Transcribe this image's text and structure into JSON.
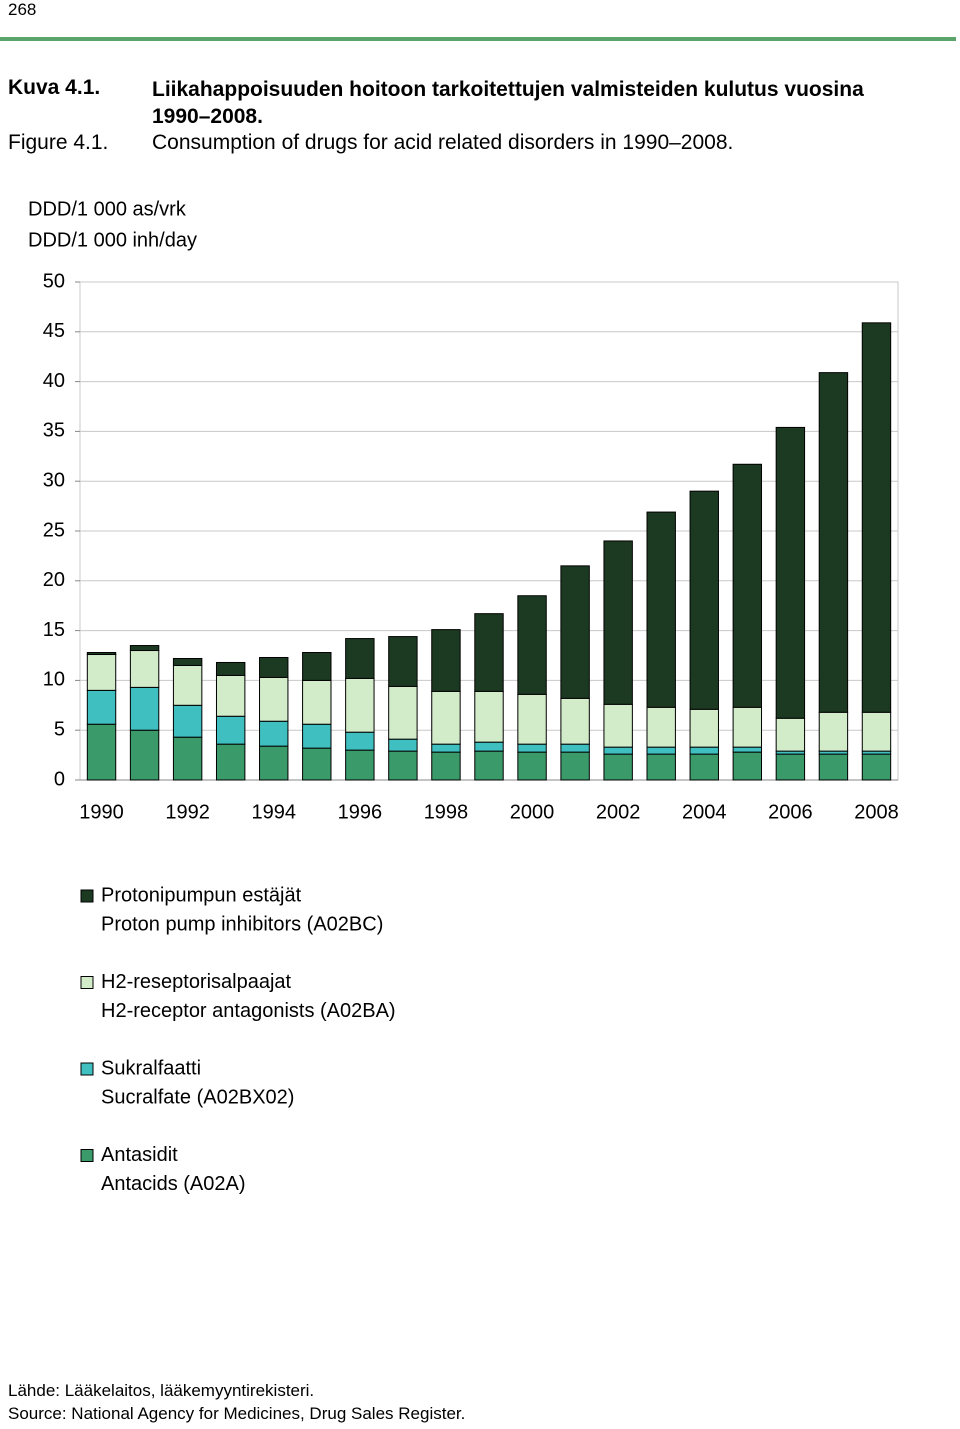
{
  "page_number": "268",
  "chart_data": {
    "type": "bar",
    "stacked": true,
    "figure_label_fi": "Kuva 4.1.",
    "title_fi": "Liikahappoisuuden hoitoon tarkoitettujen valmisteiden kulutus vuosina 1990–2008.",
    "figure_label": "Figure 4.1.",
    "title": "Consumption of drugs for acid related disorders in 1990–2008.",
    "ylabel": [
      "DDD/1 000 as/vrk",
      "DDD/1 000 inh/day"
    ],
    "categories": [
      "1990",
      null,
      "1992",
      null,
      "1994",
      null,
      "1996",
      null,
      "1998",
      null,
      "2000",
      null,
      "2002",
      null,
      "2004",
      null,
      "2006",
      null,
      "2008"
    ],
    "ylim": [
      0,
      50
    ],
    "yticks": [
      0,
      5,
      10,
      15,
      20,
      25,
      30,
      35,
      40,
      45,
      50
    ],
    "grid": true,
    "series": [
      {
        "name": "Antasidit",
        "name_en": "Antacids (A02A)",
        "color": "#3a9a6a",
        "values": [
          5.6,
          5.0,
          4.3,
          3.6,
          3.4,
          3.2,
          3.0,
          2.9,
          2.8,
          2.9,
          2.8,
          2.8,
          2.6,
          2.6,
          2.6,
          2.8,
          2.6,
          2.6,
          2.6
        ]
      },
      {
        "name": "Sukralfaatti",
        "name_en": "Sucralfate (A02BX02)",
        "color": "#3fbfc0",
        "values": [
          3.4,
          4.3,
          3.2,
          2.8,
          2.5,
          2.4,
          1.8,
          1.2,
          0.8,
          0.9,
          0.8,
          0.8,
          0.7,
          0.7,
          0.7,
          0.5,
          0.3,
          0.3,
          0.3
        ]
      },
      {
        "name": "H2-reseptorisalpaajat",
        "name_en": "H2-receptor antagonists (A02BA)",
        "color": "#d2ebc8",
        "values": [
          3.6,
          3.7,
          4.0,
          4.1,
          4.4,
          4.4,
          5.4,
          5.3,
          5.3,
          5.1,
          5.0,
          4.6,
          4.3,
          4.0,
          3.8,
          4.0,
          3.3,
          3.9,
          3.9
        ]
      },
      {
        "name": "Protonipumpun estäjät",
        "name_en": "Proton pump inhibitors (A02BC)",
        "color": "#1c3a22",
        "values": [
          0.2,
          0.5,
          0.7,
          1.3,
          2.0,
          2.8,
          4.0,
          5.0,
          6.2,
          7.8,
          9.9,
          13.3,
          16.4,
          19.6,
          21.9,
          24.4,
          29.2,
          34.1,
          39.1
        ]
      }
    ]
  },
  "source": [
    "Lähde: Lääkelaitos, lääkemyyntirekisteri.",
    "Source: National Agency for Medicines, Drug Sales Register."
  ]
}
